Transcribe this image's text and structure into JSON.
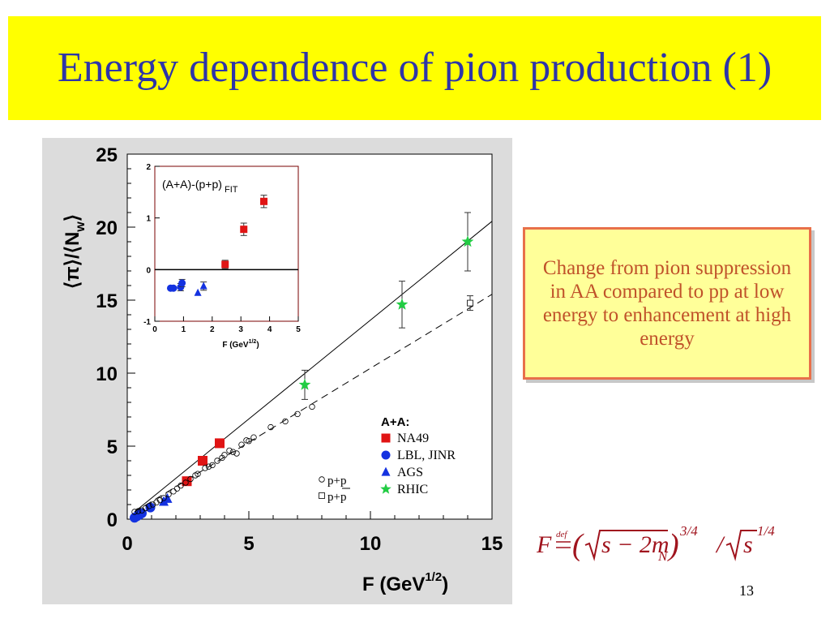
{
  "slide": {
    "title": "Energy dependence of pion production (1)",
    "callout": "Change from pion suppression in AA compared to pp at low energy to enhancement at high energy",
    "page_number": "13",
    "formula": {
      "lhs": "F",
      "def": "def",
      "body": "s − 2m",
      "sub": "N",
      "exp1": "3/4",
      "slash": "/",
      "tail": "s",
      "exp2": "1/4"
    },
    "colors": {
      "title_bar": "#ffff00",
      "title_text": "#2e35a8",
      "callout_bg": "#ffff99",
      "callout_border": "#e8704a",
      "callout_text": "#c0522a",
      "formula_text": "#a0141e",
      "na49": "#e01414",
      "lbl": "#1432e0",
      "ags": "#1432e0",
      "rhic": "#22cc44"
    }
  },
  "chart_data": [
    {
      "type": "scatter",
      "xlabel": "F (GeV",
      "xlabel_sup": "1/2",
      "xlabel_end": ")",
      "ylabel": "⟨π⟩/⟨N",
      "ylabel_sub": "w",
      "ylabel_end": "⟩",
      "xlim": [
        0,
        15
      ],
      "ylim": [
        0,
        25
      ],
      "xticks": [
        "0",
        "5",
        "10",
        "15"
      ],
      "yticks": [
        "0",
        "5",
        "10",
        "15",
        "20",
        "25"
      ],
      "legend_title": "A+A:",
      "legend": [
        "NA49",
        "LBL, JINR",
        "AGS",
        "RHIC"
      ],
      "pp_legend": [
        "p+p",
        "p+p"
      ],
      "series": [
        {
          "name": "NA49",
          "marker": "square",
          "x": [
            2.45,
            3.1,
            3.8
          ],
          "y": [
            2.6,
            4.0,
            5.2
          ]
        },
        {
          "name": "LBL, JINR",
          "marker": "circle",
          "x": [
            0.3,
            0.4,
            0.5,
            0.6,
            0.95
          ],
          "y": [
            0.1,
            0.2,
            0.3,
            0.4,
            0.8
          ]
        },
        {
          "name": "AGS",
          "marker": "triangle",
          "x": [
            1.5,
            1.65
          ],
          "y": [
            1.2,
            1.4
          ]
        },
        {
          "name": "RHIC",
          "marker": "star",
          "x": [
            7.3,
            11.3,
            14.0
          ],
          "y": [
            9.2,
            14.7,
            19.0
          ],
          "err": [
            1.0,
            1.6,
            2.0
          ]
        },
        {
          "name": "p+p",
          "marker": "open-circle",
          "x": [
            0.3,
            0.45,
            0.6,
            0.75,
            0.9,
            1.05,
            1.2,
            1.35,
            1.5,
            1.7,
            1.9,
            2.05,
            2.2,
            2.4,
            2.6,
            2.8,
            2.9,
            3.2,
            3.35,
            3.5,
            3.7,
            3.9,
            4.0,
            4.2,
            4.35,
            4.5,
            4.7,
            4.9,
            5.0,
            5.2,
            5.9,
            6.5,
            7.0,
            7.6
          ],
          "y": [
            0.5,
            0.55,
            0.6,
            0.75,
            0.9,
            1.0,
            1.15,
            1.3,
            1.45,
            1.7,
            1.9,
            2.1,
            2.3,
            2.5,
            2.75,
            3.0,
            3.1,
            3.5,
            3.6,
            3.7,
            4.0,
            4.2,
            4.4,
            4.7,
            4.6,
            4.5,
            5.1,
            5.4,
            5.35,
            5.6,
            6.3,
            6.7,
            7.2,
            7.7
          ]
        },
        {
          "name": "p+p-bar",
          "marker": "open-square",
          "x": [
            14.1
          ],
          "y": [
            14.8
          ],
          "err": [
            0.5
          ]
        }
      ],
      "fits": [
        {
          "style": "solid",
          "x": [
            0.3,
            15
          ],
          "y": [
            0.5,
            20.4
          ]
        },
        {
          "style": "dashed",
          "x": [
            0.3,
            15
          ],
          "y": [
            0.5,
            15.4
          ]
        }
      ]
    },
    {
      "type": "scatter",
      "label": "(A+A)-(p+p)",
      "label_sub": "FIT",
      "xlabel": "F (GeV",
      "xlabel_sup": "1/2",
      "xlabel_end": ")",
      "xlim": [
        0,
        5
      ],
      "ylim": [
        -1,
        2
      ],
      "xticks": [
        "0",
        "1",
        "2",
        "3",
        "4",
        "5"
      ],
      "yticks": [
        "-1",
        "0",
        "1",
        "2"
      ],
      "series": [
        {
          "name": "NA49",
          "marker": "square",
          "x": [
            2.45,
            3.1,
            3.8
          ],
          "y": [
            0.1,
            0.78,
            1.32
          ],
          "err": [
            0.08,
            0.12,
            0.12
          ]
        },
        {
          "name": "LBL, JINR",
          "marker": "circle",
          "x": [
            0.55,
            0.65,
            0.9,
            0.95
          ],
          "y": [
            -0.36,
            -0.36,
            -0.34,
            -0.26
          ],
          "err": [
            0.0,
            0.0,
            0.07,
            0.07
          ]
        },
        {
          "name": "AGS",
          "marker": "triangle",
          "x": [
            1.5,
            1.7
          ],
          "y": [
            -0.45,
            -0.32
          ],
          "err": [
            0.0,
            0.08
          ]
        }
      ]
    }
  ]
}
